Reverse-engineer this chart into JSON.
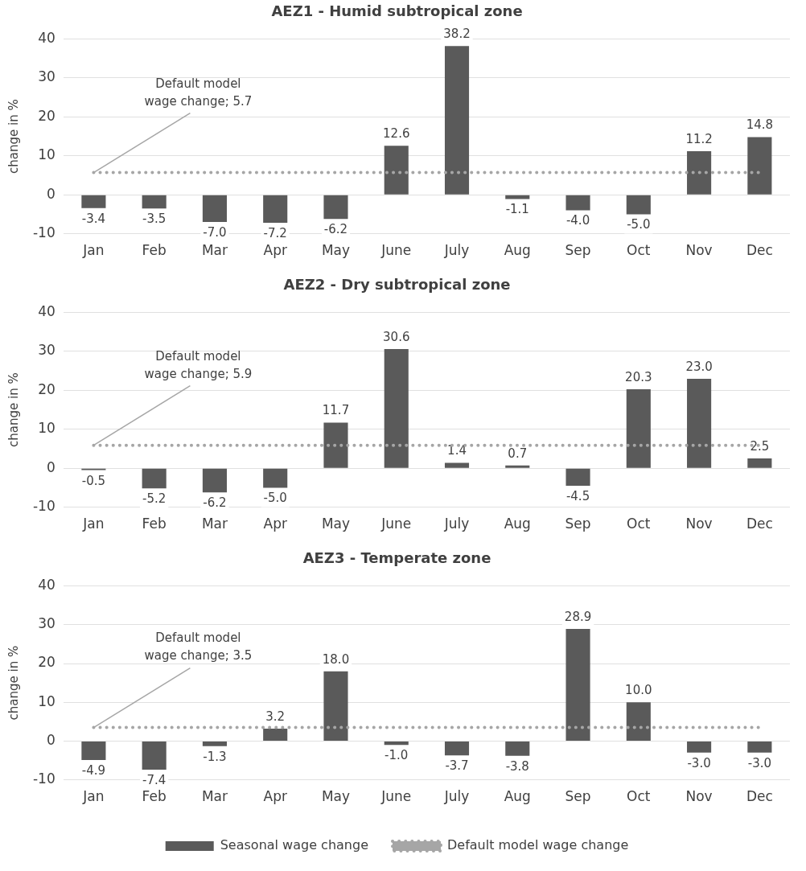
{
  "chart_data": [
    {
      "type": "bar",
      "title": "AEZ1 - Humid subtropical zone",
      "ylabel": "change in %",
      "categories": [
        "Jan",
        "Feb",
        "Mar",
        "Apr",
        "May",
        "June",
        "July",
        "Aug",
        "Sep",
        "Oct",
        "Nov",
        "Dec"
      ],
      "series": [
        {
          "color": "#5a5a5a",
          "values": [
            -3.4,
            -3.5,
            -7.0,
            -7.2,
            -6.2,
            12.6,
            38.2,
            -1.1,
            -4.0,
            -5.0,
            11.2,
            14.8
          ],
          "value_labels": [
            "-3.4",
            "-3.5",
            "-7.0",
            "-7.2",
            "-6.2",
            "12.6",
            "38.2",
            "-1.1",
            "-4.0",
            "-5.0",
            "11.2",
            "14.8"
          ]
        },
        {
          "type": "line",
          "color": "#a6a6a6",
          "line_style": "dotted",
          "marker": "none",
          "values": [
            5.7,
            5.7,
            5.7,
            5.7,
            5.7,
            5.7,
            5.7,
            5.7,
            5.7,
            5.7,
            5.7,
            5.7
          ]
        }
      ],
      "annotations": [
        {
          "text": "Default model wage change; 5.7",
          "x": "Jan",
          "y": 5.7
        }
      ],
      "ylim": [
        -10,
        40
      ],
      "yticks": [
        -10,
        0,
        10,
        20,
        30,
        40
      ],
      "grid": "y",
      "legend": false
    },
    {
      "type": "bar",
      "title": "AEZ2 - Dry subtropical zone",
      "ylabel": "change in %",
      "categories": [
        "Jan",
        "Feb",
        "Mar",
        "Apr",
        "May",
        "June",
        "July",
        "Aug",
        "Sep",
        "Oct",
        "Nov",
        "Dec"
      ],
      "series": [
        {
          "color": "#5a5a5a",
          "values": [
            -0.5,
            -5.2,
            -6.2,
            -5.0,
            11.7,
            30.6,
            1.4,
            0.7,
            -4.5,
            20.3,
            23.0,
            2.5
          ],
          "value_labels": [
            "-0.5",
            "-5.2",
            "-6.2",
            "-5.0",
            "11.7",
            "30.6",
            "1.4",
            "0.7",
            "-4.5",
            "20.3",
            "23.0",
            "2.5"
          ]
        },
        {
          "type": "line",
          "color": "#a6a6a6",
          "line_style": "dotted",
          "marker": "none",
          "values": [
            5.9,
            5.9,
            5.9,
            5.9,
            5.9,
            5.9,
            5.9,
            5.9,
            5.9,
            5.9,
            5.9,
            5.9
          ]
        }
      ],
      "annotations": [
        {
          "text": "Default model wage change; 5.9",
          "x": "Jan",
          "y": 5.9
        }
      ],
      "ylim": [
        -10,
        40
      ],
      "yticks": [
        -10,
        0,
        10,
        20,
        30,
        40
      ],
      "grid": "y",
      "legend": false
    },
    {
      "type": "bar",
      "title": "AEZ3 - Temperate zone",
      "ylabel": "change in %",
      "categories": [
        "Jan",
        "Feb",
        "Mar",
        "Apr",
        "May",
        "June",
        "July",
        "Aug",
        "Sep",
        "Oct",
        "Nov",
        "Dec"
      ],
      "series": [
        {
          "name": "Seasonal wage change",
          "color": "#5a5a5a",
          "values": [
            -4.9,
            -7.4,
            -1.3,
            3.2,
            18.0,
            -1.0,
            -3.7,
            -3.8,
            28.9,
            10.0,
            -3.0,
            -3.0
          ],
          "value_labels": [
            "-4.9",
            "-7.4",
            "-1.3",
            "3.2",
            "18.0",
            "-1.0",
            "-3.7",
            "-3.8",
            "28.9",
            "10.0",
            "-3.0",
            "-3.0"
          ]
        },
        {
          "name": "Default model wage change",
          "type": "line",
          "color": "#a6a6a6",
          "line_style": "dotted",
          "marker": "none",
          "values": [
            3.5,
            3.5,
            3.5,
            3.5,
            3.5,
            3.5,
            3.5,
            3.5,
            3.5,
            3.5,
            3.5,
            3.5
          ]
        }
      ],
      "annotations": [
        {
          "text": "Default model wage change; 3.5",
          "x": "Jan",
          "y": 3.5
        }
      ],
      "ylim": [
        -10,
        40
      ],
      "yticks": [
        -10,
        0,
        10,
        20,
        30,
        40
      ],
      "grid": "y",
      "legend": "bottom"
    }
  ]
}
